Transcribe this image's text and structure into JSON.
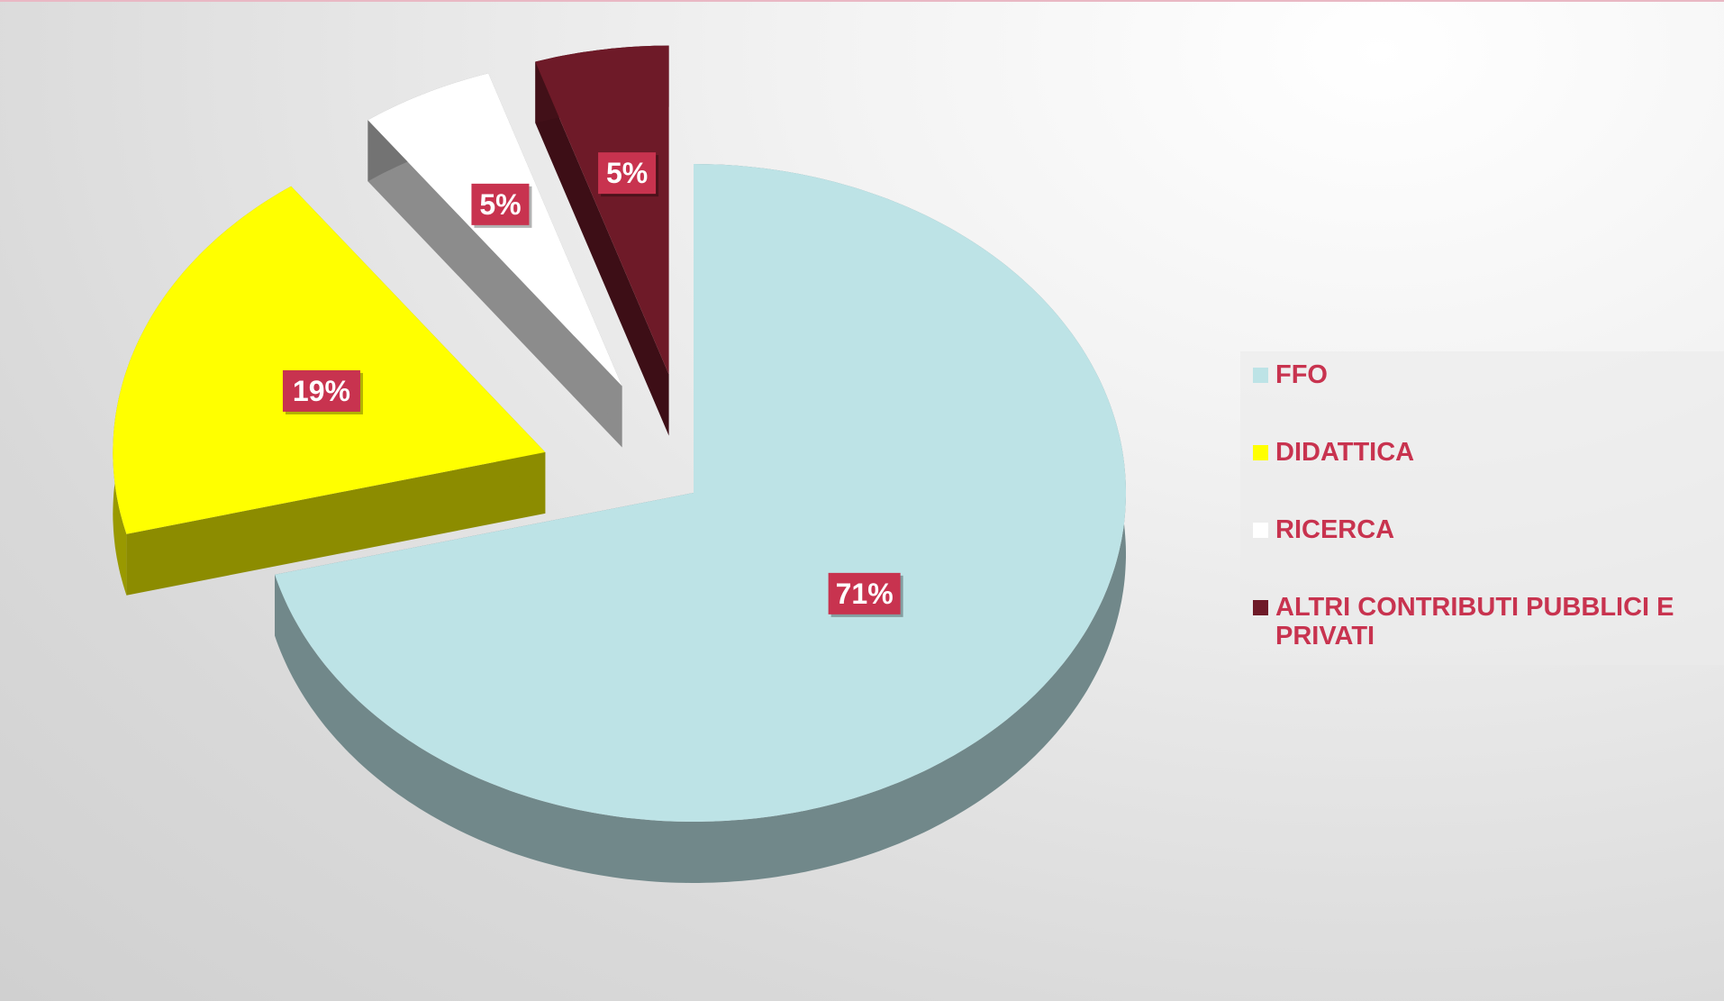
{
  "chart_data": {
    "type": "pie",
    "categories": [
      "FFO",
      "DIDATTICA",
      "RICERCA",
      "ALTRI CONTRIBUTI PUBBLICI E PRIVATI"
    ],
    "values": [
      71,
      19,
      5,
      5
    ],
    "value_labels": [
      "71%",
      "19%",
      "5%",
      "5%"
    ],
    "colors": [
      "#bde3e6",
      "#ffff00",
      "#ffffff",
      "#6e1a28"
    ],
    "legend": "right"
  }
}
